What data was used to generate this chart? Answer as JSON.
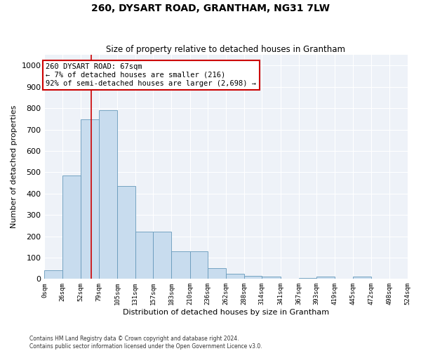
{
  "title": "260, DYSART ROAD, GRANTHAM, NG31 7LW",
  "subtitle": "Size of property relative to detached houses in Grantham",
  "xlabel": "Distribution of detached houses by size in Grantham",
  "ylabel": "Number of detached properties",
  "bar_color": "#c8dcee",
  "bar_edge_color": "#6699bb",
  "background_color": "#eef2f8",
  "grid_color": "#ffffff",
  "vline_x": 67,
  "vline_color": "#cc0000",
  "annotation_text": "260 DYSART ROAD: 67sqm\n← 7% of detached houses are smaller (216)\n92% of semi-detached houses are larger (2,698) →",
  "annotation_box_color": "#cc0000",
  "footer_line1": "Contains HM Land Registry data © Crown copyright and database right 2024.",
  "footer_line2": "Contains public sector information licensed under the Open Government Licence v3.0.",
  "bin_edges": [
    0,
    26,
    52,
    79,
    105,
    131,
    157,
    183,
    210,
    236,
    262,
    288,
    314,
    341,
    367,
    393,
    419,
    445,
    472,
    498,
    524
  ],
  "bar_heights": [
    40,
    485,
    748,
    791,
    435,
    222,
    222,
    130,
    130,
    52,
    25,
    15,
    10,
    0,
    5,
    10,
    0,
    10,
    0,
    0
  ],
  "ylim": [
    0,
    1050
  ],
  "yticks": [
    0,
    100,
    200,
    300,
    400,
    500,
    600,
    700,
    800,
    900,
    1000
  ],
  "tick_labels": [
    "0sqm",
    "26sqm",
    "52sqm",
    "79sqm",
    "105sqm",
    "131sqm",
    "157sqm",
    "183sqm",
    "210sqm",
    "236sqm",
    "262sqm",
    "288sqm",
    "314sqm",
    "341sqm",
    "367sqm",
    "393sqm",
    "419sqm",
    "445sqm",
    "472sqm",
    "498sqm",
    "524sqm"
  ]
}
